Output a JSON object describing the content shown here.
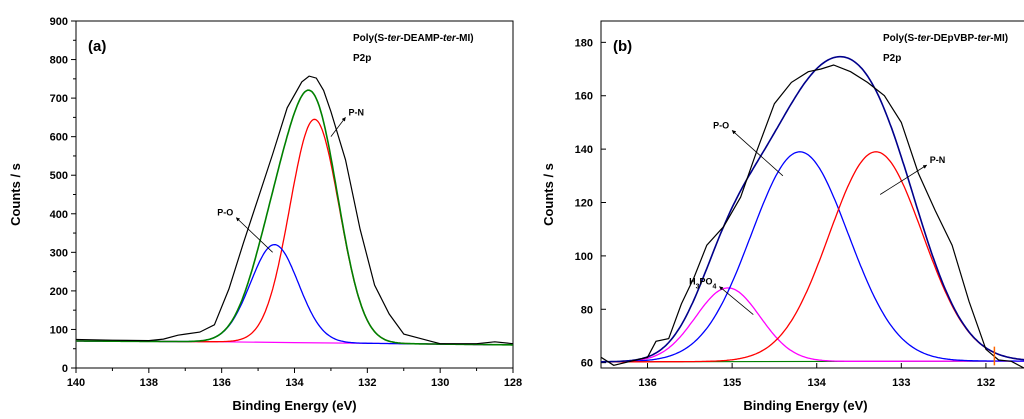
{
  "chart_data": [
    {
      "type": "line",
      "panel_label": "(a)",
      "sample_title_parts": [
        {
          "t": "Poly(S-",
          "i": false
        },
        {
          "t": "ter",
          "i": true
        },
        {
          "t": "-DEAMP-",
          "i": false
        },
        {
          "t": "ter",
          "i": true
        },
        {
          "t": "-MI)",
          "i": false
        }
      ],
      "subtitle": "P2p",
      "xlabel": "Binding Energy (eV)",
      "ylabel": "Counts / s",
      "xlim": [
        140,
        128
      ],
      "ylim": [
        0,
        900
      ],
      "xticks": [
        140,
        138,
        136,
        134,
        132,
        130,
        128
      ],
      "yticks": [
        0,
        100,
        200,
        300,
        400,
        500,
        600,
        700,
        800,
        900
      ],
      "series": [
        {
          "kind": "background",
          "color": "#ff00ff",
          "x": [
            140,
            136,
            134,
            132,
            130,
            128
          ],
          "y": [
            70,
            68,
            66,
            64,
            62,
            60
          ]
        },
        {
          "kind": "peak",
          "color": "#ff0000",
          "center": 133.45,
          "height": 645,
          "fwhm": 1.6
        },
        {
          "kind": "peak",
          "color": "#0000ff",
          "center": 134.55,
          "height": 320,
          "fwhm": 1.55
        },
        {
          "kind": "envelope",
          "color": "#008000"
        },
        {
          "kind": "raw",
          "color": "#000000",
          "x": [
            140,
            139,
            138,
            137.6,
            137.2,
            137,
            136.6,
            136.2,
            135.8,
            135.4,
            135,
            134.6,
            134.2,
            133.8,
            133.6,
            133.4,
            133.2,
            133,
            132.6,
            132.2,
            131.8,
            131.4,
            131,
            130.6,
            130.2,
            130,
            129,
            128.5,
            128
          ],
          "y": [
            74,
            72,
            71,
            75,
            85,
            88,
            93,
            112,
            205,
            325,
            440,
            555,
            675,
            742,
            757,
            752,
            720,
            665,
            540,
            360,
            215,
            140,
            88,
            78,
            68,
            63,
            63,
            68,
            63
          ]
        }
      ],
      "annotations": [
        {
          "text": "P-N",
          "arrow_from": [
            133.0,
            600
          ],
          "arrow_to": [
            132.6,
            650
          ]
        },
        {
          "text": "P-O",
          "arrow_from": [
            134.6,
            300
          ],
          "arrow_to": [
            135.6,
            390
          ]
        }
      ]
    },
    {
      "type": "line",
      "panel_label": "(b)",
      "sample_title_parts": [
        {
          "t": "Poly(S-",
          "i": false
        },
        {
          "t": "ter",
          "i": true
        },
        {
          "t": "-DEpVBP-",
          "i": false
        },
        {
          "t": "ter",
          "i": true
        },
        {
          "t": "-MI)",
          "i": false
        }
      ],
      "subtitle": "P2p",
      "xlabel": "Binding Energy (eV)",
      "ylabel": "Counts / s",
      "xlim": [
        136.55,
        131.55
      ],
      "ylim": [
        58,
        188
      ],
      "xticks": [
        136,
        135,
        134,
        133,
        132
      ],
      "yticks": [
        60,
        80,
        100,
        120,
        140,
        160,
        180
      ],
      "series": [
        {
          "kind": "background",
          "color": "#008000",
          "x": [
            136.55,
            131.9
          ],
          "y": [
            60.3,
            60.6
          ]
        },
        {
          "kind": "peak",
          "color": "#ff00ff",
          "center": 135.05,
          "height": 88,
          "fwhm": 0.9
        },
        {
          "kind": "peak",
          "color": "#0000ff",
          "center": 134.2,
          "height": 139,
          "fwhm": 1.35
        },
        {
          "kind": "peak",
          "color": "#ff0000",
          "center": 133.3,
          "height": 139,
          "fwhm": 1.3
        },
        {
          "kind": "envelope",
          "color": "#00008b"
        },
        {
          "kind": "raw",
          "color": "#000000",
          "x": [
            136.55,
            136.4,
            136.2,
            136.0,
            135.9,
            135.75,
            135.6,
            135.45,
            135.3,
            135.1,
            134.9,
            134.7,
            134.5,
            134.3,
            134.1,
            133.95,
            133.8,
            133.6,
            133.4,
            133.2,
            133.0,
            132.8,
            132.6,
            132.4,
            132.2,
            132.0,
            131.85,
            131.7,
            131.55
          ],
          "y": [
            62,
            59,
            60.5,
            62,
            68,
            69,
            82,
            92,
            104,
            111,
            122,
            140,
            157,
            165,
            169,
            170,
            171.5,
            169,
            165,
            160,
            150,
            131,
            117,
            104,
            83,
            65,
            61,
            60.5,
            58
          ]
        }
      ],
      "annotations": [
        {
          "text": "P-O",
          "arrow_from": [
            134.4,
            130
          ],
          "arrow_to": [
            135.0,
            147
          ]
        },
        {
          "text": "P-N",
          "arrow_from": [
            133.25,
            123
          ],
          "arrow_to": [
            132.7,
            134
          ]
        },
        {
          "text_parts": [
            {
              "t": "H",
              "s": false
            },
            {
              "t": "3",
              "s": true
            },
            {
              "t": "PO",
              "s": false
            },
            {
              "t": "4",
              "s": true
            }
          ],
          "arrow_from": [
            134.75,
            78
          ],
          "arrow_to": [
            135.15,
            88.5
          ]
        }
      ],
      "marker": {
        "x": 131.9,
        "y0": 59,
        "y1": 66,
        "color": "#ff6600"
      }
    }
  ]
}
